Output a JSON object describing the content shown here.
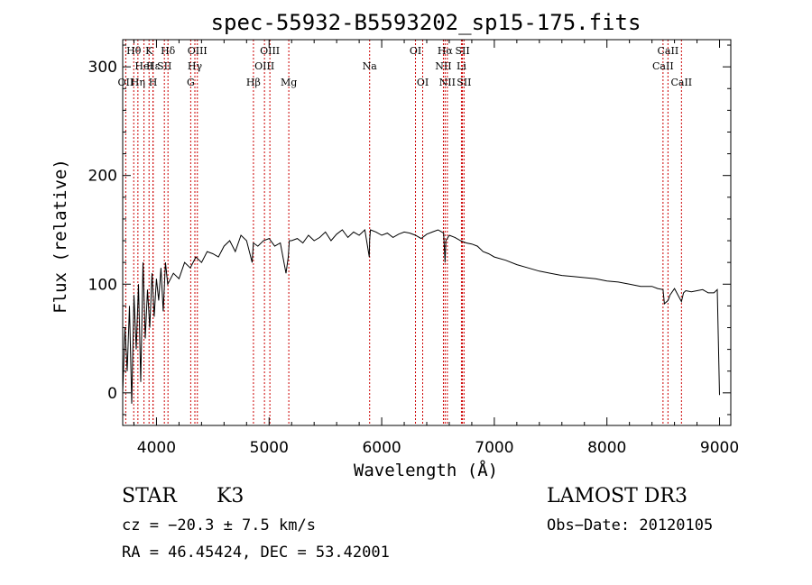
{
  "chart_data": {
    "type": "line",
    "title": "spec-55932-B5593202_sp15-175.fits",
    "xlabel": "Wavelength (Å)",
    "ylabel": "Flux (relative)",
    "xlim": [
      3700,
      9100
    ],
    "ylim": [
      -30,
      325
    ],
    "xticks": [
      4000,
      5000,
      6000,
      7000,
      8000,
      9000
    ],
    "yticks": [
      0,
      100,
      200,
      300
    ],
    "ytick_labels": [
      "0",
      "100",
      "200",
      "300"
    ],
    "xtick_labels": [
      "4000",
      "5000",
      "6000",
      "7000",
      "8000",
      "9000"
    ],
    "series": [
      {
        "name": "spectrum",
        "x": [
          3700,
          3720,
          3740,
          3760,
          3780,
          3800,
          3820,
          3840,
          3860,
          3880,
          3900,
          3920,
          3940,
          3960,
          3980,
          4000,
          4020,
          4040,
          4060,
          4080,
          4100,
          4150,
          4200,
          4250,
          4300,
          4350,
          4400,
          4450,
          4500,
          4550,
          4600,
          4650,
          4700,
          4750,
          4800,
          4850,
          4860,
          4900,
          4950,
          5000,
          5050,
          5100,
          5150,
          5170,
          5180,
          5200,
          5250,
          5300,
          5350,
          5400,
          5450,
          5500,
          5550,
          5600,
          5650,
          5700,
          5750,
          5800,
          5850,
          5890,
          5893,
          5900,
          5950,
          6000,
          6050,
          6100,
          6150,
          6200,
          6250,
          6300,
          6350,
          6400,
          6450,
          6500,
          6550,
          6563,
          6570,
          6600,
          6650,
          6700,
          6750,
          6800,
          6850,
          6900,
          6950,
          7000,
          7100,
          7200,
          7300,
          7400,
          7500,
          7600,
          7700,
          7800,
          7900,
          8000,
          8100,
          8200,
          8300,
          8400,
          8450,
          8498,
          8510,
          8542,
          8560,
          8600,
          8662,
          8680,
          8700,
          8750,
          8800,
          8850,
          8900,
          8950,
          8980,
          9000
        ],
        "y": [
          0,
          60,
          20,
          80,
          -10,
          90,
          40,
          100,
          10,
          120,
          50,
          95,
          60,
          110,
          70,
          105,
          85,
          115,
          75,
          120,
          100,
          110,
          105,
          120,
          115,
          125,
          120,
          130,
          128,
          125,
          135,
          140,
          130,
          145,
          140,
          120,
          138,
          135,
          140,
          142,
          135,
          138,
          110,
          125,
          140,
          140,
          142,
          138,
          145,
          140,
          143,
          148,
          140,
          146,
          150,
          143,
          148,
          145,
          150,
          125,
          140,
          150,
          148,
          145,
          147,
          143,
          146,
          148,
          147,
          145,
          142,
          146,
          148,
          150,
          147,
          120,
          140,
          145,
          143,
          140,
          138,
          137,
          135,
          130,
          128,
          125,
          122,
          118,
          115,
          112,
          110,
          108,
          107,
          106,
          105,
          103,
          102,
          100,
          98,
          98,
          96,
          95,
          82,
          85,
          90,
          96,
          84,
          92,
          94,
          93,
          94,
          95,
          92,
          92,
          95,
          -2
        ]
      }
    ],
    "spectral_lines": [
      {
        "label": "Hθ",
        "wavelength": 3798,
        "row": 1
      },
      {
        "label": "Hη",
        "wavelength": 3835,
        "row": 3
      },
      {
        "label": "OII",
        "wavelength": 3727,
        "row": 3
      },
      {
        "label": "HeI",
        "wavelength": 3889,
        "row": 2
      },
      {
        "label": "K",
        "wavelength": 3934,
        "row": 1
      },
      {
        "label": "H",
        "wavelength": 3969,
        "row": 3
      },
      {
        "label": "Hε",
        "wavelength": 3970,
        "row": 2
      },
      {
        "label": "SII",
        "wavelength": 4070,
        "row": 2
      },
      {
        "label": "Hδ",
        "wavelength": 4102,
        "row": 1
      },
      {
        "label": "G",
        "wavelength": 4304,
        "row": 3
      },
      {
        "label": "Hγ",
        "wavelength": 4341,
        "row": 2
      },
      {
        "label": "OIII",
        "wavelength": 4363,
        "row": 1
      },
      {
        "label": "Hβ",
        "wavelength": 4861,
        "row": 3
      },
      {
        "label": "OIII",
        "wavelength": 4959,
        "row": 2
      },
      {
        "label": "OIII",
        "wavelength": 5007,
        "row": 1
      },
      {
        "label": "Mg",
        "wavelength": 5175,
        "row": 3
      },
      {
        "label": "Na",
        "wavelength": 5893,
        "row": 2
      },
      {
        "label": "OI",
        "wavelength": 6300,
        "row": 1
      },
      {
        "label": "OI",
        "wavelength": 6364,
        "row": 3
      },
      {
        "label": "NII",
        "wavelength": 6548,
        "row": 2
      },
      {
        "label": "Hα",
        "wavelength": 6563,
        "row": 1
      },
      {
        "label": "NII",
        "wavelength": 6583,
        "row": 3
      },
      {
        "label": "SII",
        "wavelength": 6717,
        "row": 1
      },
      {
        "label": "Li",
        "wavelength": 6708,
        "row": 2
      },
      {
        "label": "SII",
        "wavelength": 6731,
        "row": 3
      },
      {
        "label": "CaII",
        "wavelength": 8498,
        "row": 2
      },
      {
        "label": "CaII",
        "wavelength": 8542,
        "row": 1
      },
      {
        "label": "CaII",
        "wavelength": 8662,
        "row": 3
      }
    ]
  },
  "info": {
    "class": "STAR",
    "subclass": "K3",
    "cz": "cz = −20.3 ± 7.5 km/s",
    "radec": "RA =  46.45424, DEC =  53.42001",
    "survey": "LAMOST DR3",
    "obsdate": "Obs−Date: 20120105"
  },
  "colors": {
    "spectrum": "#000000",
    "lines": "#cc0000",
    "axes": "#000000"
  }
}
